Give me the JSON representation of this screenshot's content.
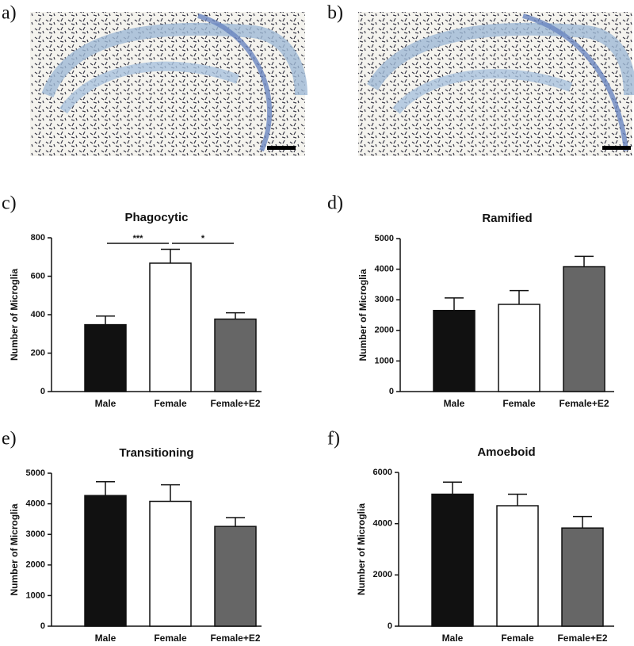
{
  "images": [
    {
      "label": "a)"
    },
    {
      "label": "b)"
    }
  ],
  "chart_data": [
    {
      "type": "bar",
      "panel_label": "c)",
      "title": "Phagocytic",
      "y_label": "Number of Microglia",
      "categories": [
        "Male",
        "Female",
        "Female+E2"
      ],
      "values": [
        348,
        668,
        377
      ],
      "errors": [
        45,
        72,
        33
      ],
      "colors": [
        "#111111",
        "#ffffff",
        "#666666"
      ],
      "ylim": [
        0,
        800
      ],
      "yticks": [
        0,
        200,
        400,
        600,
        800
      ],
      "annotations": [
        "***",
        "*"
      ]
    },
    {
      "type": "bar",
      "panel_label": "d)",
      "title": "Ramified",
      "y_label": "Number of Microglia",
      "categories": [
        "Male",
        "Female",
        "Female+E2"
      ],
      "values": [
        2650,
        2850,
        4080
      ],
      "errors": [
        410,
        450,
        340
      ],
      "colors": [
        "#111111",
        "#ffffff",
        "#666666"
      ],
      "ylim": [
        0,
        5000
      ],
      "yticks": [
        0,
        1000,
        2000,
        3000,
        4000,
        5000
      ]
    },
    {
      "type": "bar",
      "panel_label": "e)",
      "title": "Transitioning",
      "y_label": "Number of Microglia",
      "categories": [
        "Male",
        "Female",
        "Female+E2"
      ],
      "values": [
        4270,
        4080,
        3260
      ],
      "errors": [
        450,
        540,
        290
      ],
      "colors": [
        "#111111",
        "#ffffff",
        "#666666"
      ],
      "ylim": [
        0,
        5000
      ],
      "yticks": [
        0,
        1000,
        2000,
        3000,
        4000,
        5000
      ]
    },
    {
      "type": "bar",
      "panel_label": "f)",
      "title": "Amoeboid",
      "y_label": "Number of Microglia",
      "categories": [
        "Male",
        "Female",
        "Female+E2"
      ],
      "values": [
        5150,
        4700,
        3830
      ],
      "errors": [
        470,
        450,
        450
      ],
      "colors": [
        "#111111",
        "#ffffff",
        "#666666"
      ],
      "ylim": [
        0,
        6000
      ],
      "yticks": [
        0,
        2000,
        4000,
        6000
      ]
    }
  ]
}
